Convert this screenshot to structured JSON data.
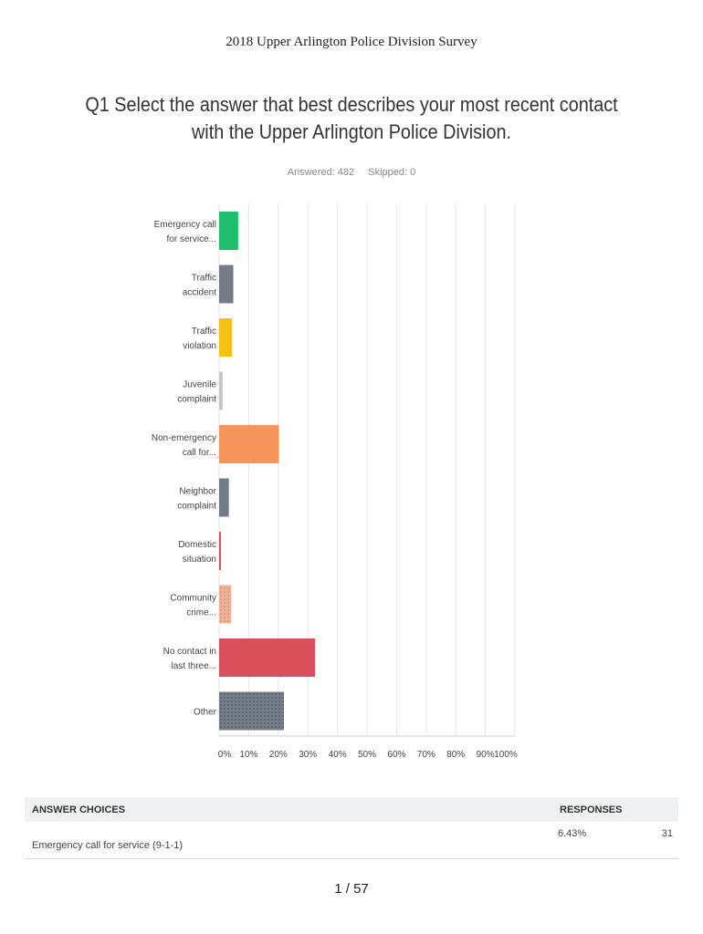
{
  "document": {
    "header": "2018 Upper Arlington Police Division Survey",
    "page_number": "1 / 57"
  },
  "question": {
    "title": "Q1 Select the answer that best describes your most recent contact with the Upper Arlington Police Division.",
    "answered": "Answered: 482",
    "skipped": "Skipped: 0"
  },
  "chart_data": {
    "type": "bar",
    "orientation": "horizontal",
    "categories": [
      [
        "Emergency call",
        "for service..."
      ],
      [
        "Traffic",
        "accident"
      ],
      [
        "Traffic",
        "violation"
      ],
      [
        "Juvenile",
        "complaint"
      ],
      [
        "Non-emergency",
        "call for..."
      ],
      [
        "Neighbor",
        "complaint"
      ],
      [
        "Domestic",
        "situation"
      ],
      [
        "Community",
        "crime..."
      ],
      [
        "No contact in",
        "last three..."
      ],
      [
        "Other"
      ]
    ],
    "values": [
      6.43,
      4.8,
      4.4,
      1.2,
      20.2,
      3.3,
      0.6,
      4.1,
      32.4,
      21.9
    ],
    "colors": [
      "#1fbe6f",
      "#737c87",
      "#f5c112",
      "#c8c8c8",
      "#f6955b",
      "#737c87",
      "#d94f5c",
      "#e8a98c",
      "#d94f5c",
      "#737c87"
    ],
    "xlim": [
      0,
      100
    ],
    "x_ticks": [
      "0%",
      "10%",
      "20%",
      "30%",
      "40%",
      "50%",
      "60%",
      "70%",
      "80%",
      "90%",
      "100%"
    ],
    "grid": true
  },
  "table": {
    "header_choices": "ANSWER CHOICES",
    "header_responses": "RESPONSES",
    "rows": [
      {
        "choice": "Emergency call for service (9-1-1)",
        "percent": "6.43%",
        "count": "31"
      }
    ]
  }
}
